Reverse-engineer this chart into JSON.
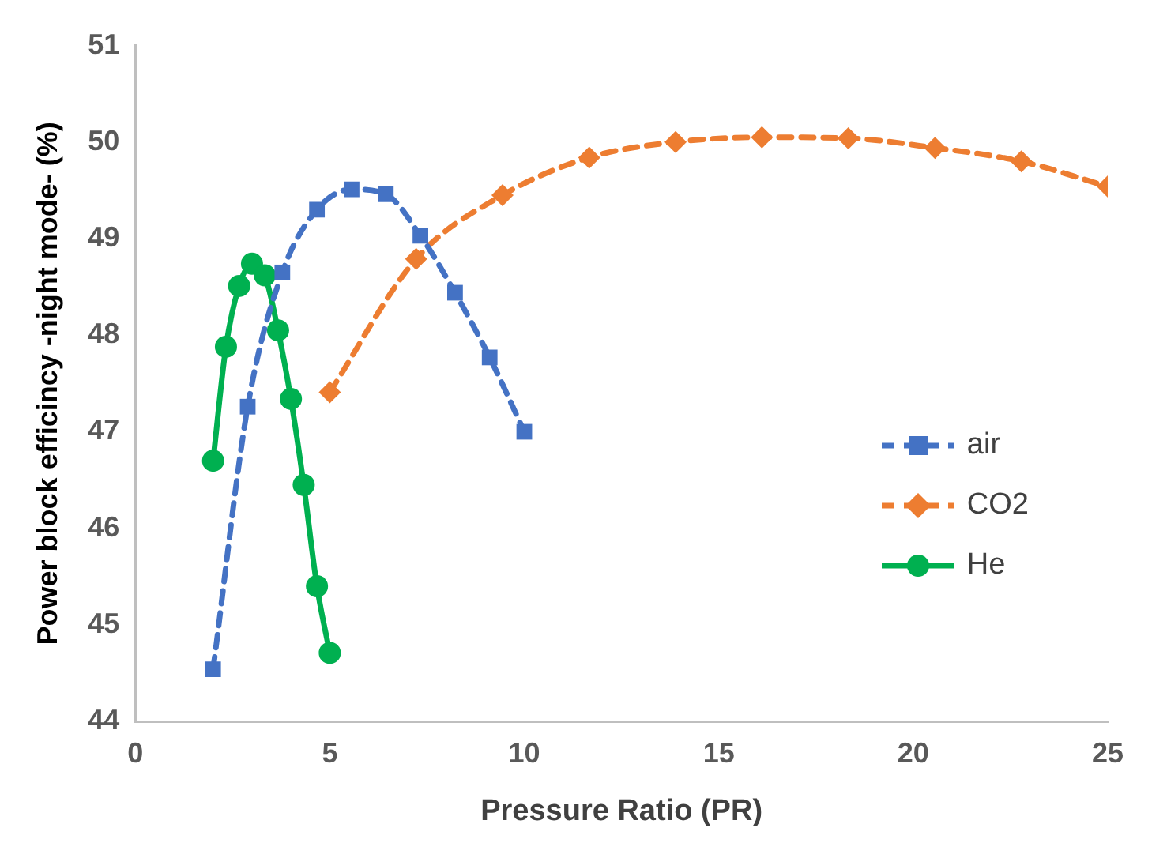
{
  "chart_data": {
    "type": "line",
    "xlabel": "Pressure Ratio (PR)",
    "ylabel": "Power block efficincy -night mode- (%)",
    "xlim": [
      0,
      25
    ],
    "xticks": [
      0,
      5,
      10,
      15,
      20,
      25
    ],
    "ylim": [
      44,
      51
    ],
    "yticks": [
      44,
      45,
      46,
      47,
      48,
      49,
      50,
      51
    ],
    "grid": false,
    "legend": "right",
    "series": [
      {
        "name": "air",
        "color": "#4472c4",
        "marker": "square",
        "line_style": "dashed",
        "x": [
          2,
          2.89,
          3.78,
          4.67,
          5.56,
          6.44,
          7.33,
          8.22,
          9.11,
          10
        ],
        "values": [
          44.54,
          47.26,
          48.65,
          49.3,
          49.51,
          49.46,
          49.03,
          48.44,
          47.77,
          47.0
        ]
      },
      {
        "name": "CO2",
        "color": "#ed7d31",
        "marker": "diamond",
        "line_style": "dashed",
        "x": [
          5,
          7.22,
          9.44,
          11.67,
          13.89,
          16.11,
          18.33,
          20.56,
          22.78,
          25
        ],
        "values": [
          47.41,
          48.79,
          49.45,
          49.84,
          50.0,
          50.05,
          50.04,
          49.94,
          49.8,
          49.54
        ]
      },
      {
        "name": "He",
        "color": "#00b050",
        "marker": "circle",
        "line_style": "solid",
        "x": [
          2,
          2.33,
          2.67,
          3,
          3.33,
          3.67,
          4,
          4.33,
          4.67,
          5
        ],
        "values": [
          46.7,
          47.88,
          48.51,
          48.74,
          48.62,
          48.05,
          47.34,
          46.45,
          45.4,
          44.71
        ]
      }
    ]
  }
}
